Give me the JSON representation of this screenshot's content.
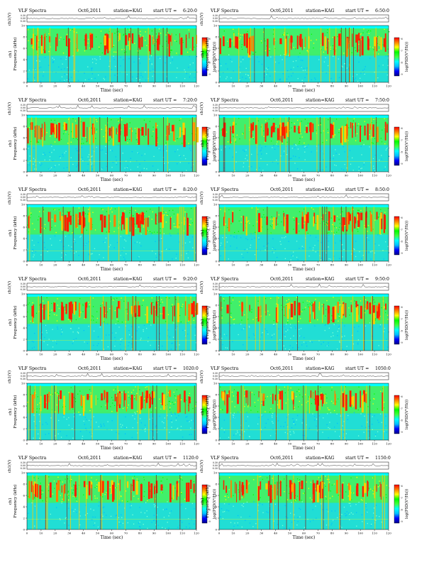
{
  "panel_text": {
    "product": "VLF Spectra",
    "date": "Oct6,2011",
    "station": "station=KAG",
    "start_prefix": "start UT =",
    "wave_ylabel": "ch1(V)",
    "spec_ylabel": "Frequency (kHz)",
    "channel_label": "ch1",
    "xlabel": "Time (sec)",
    "cbar_label": "log(PSD(V²/Hz))"
  },
  "colormap": [
    "#00008b",
    "#0000ff",
    "#00bfff",
    "#00ffff",
    "#40ff40",
    "#00ff00",
    "#ffff00",
    "#ff8000",
    "#ff0000"
  ],
  "chart_data": [
    {
      "type": "heatmap",
      "start_ut": "6:20:0",
      "column": "left",
      "row": 0
    },
    {
      "type": "heatmap",
      "start_ut": "6:50:0",
      "column": "right",
      "row": 0
    },
    {
      "type": "heatmap",
      "start_ut": "7:20:0",
      "column": "left",
      "row": 1
    },
    {
      "type": "heatmap",
      "start_ut": "7:50:0",
      "column": "right",
      "row": 1
    },
    {
      "type": "heatmap",
      "start_ut": "8:20:0",
      "column": "left",
      "row": 2
    },
    {
      "type": "heatmap",
      "start_ut": "8:50:0",
      "column": "right",
      "row": 2
    },
    {
      "type": "heatmap",
      "start_ut": "9:20:0",
      "column": "left",
      "row": 3
    },
    {
      "type": "heatmap",
      "start_ut": "9:50:0",
      "column": "right",
      "row": 3
    },
    {
      "type": "heatmap",
      "start_ut": "1020:0",
      "column": "left",
      "row": 4
    },
    {
      "type": "heatmap",
      "start_ut": "1050:0",
      "column": "right",
      "row": 4
    },
    {
      "type": "heatmap",
      "start_ut": "1120:0",
      "column": "left",
      "row": 5
    },
    {
      "type": "heatmap",
      "start_ut": "1150:0",
      "column": "right",
      "row": 5
    }
  ],
  "shared_axes": {
    "x": {
      "label": "Time (sec)",
      "range": [
        0,
        120
      ],
      "ticks": [
        "0",
        "10",
        "20",
        "30",
        "40",
        "50",
        "60",
        "70",
        "80",
        "90",
        "100",
        "110",
        "120"
      ]
    },
    "y_freq": {
      "label": "Frequency (kHz)",
      "range": [
        0,
        10
      ],
      "ticks": [
        "0",
        "2",
        "4",
        "6",
        "8",
        "10"
      ]
    },
    "y_wave": {
      "label": "ch1(V)",
      "ticks": [
        "0.30",
        "0.00",
        "-0.30"
      ]
    },
    "colorbar": {
      "label": "log(PSD(V²/Hz))",
      "ticks": [
        "-6",
        "-7",
        "-8",
        "-9"
      ]
    }
  }
}
